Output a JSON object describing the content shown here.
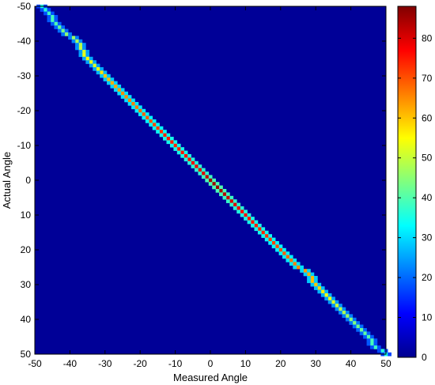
{
  "chart_data": {
    "type": "heatmap",
    "title": "",
    "xlabel": "Measured Angle",
    "ylabel": "Actual Angle",
    "xlim": [
      -50,
      50
    ],
    "ylim": [
      -50,
      50
    ],
    "y_direction": "top-to-bottom",
    "x_ticks": [
      -50,
      -40,
      -30,
      -20,
      -10,
      0,
      10,
      20,
      30,
      40,
      50
    ],
    "y_ticks": [
      -50,
      -40,
      -30,
      -20,
      -10,
      0,
      10,
      20,
      30,
      40,
      50
    ],
    "colorbar": {
      "colormap": "jet",
      "range": [
        0,
        88
      ],
      "ticks": [
        0,
        10,
        20,
        30,
        40,
        50,
        60,
        70,
        80
      ]
    },
    "bin_width": 1,
    "background_value": 2,
    "diagonal": [
      {
        "actual": -50,
        "measured": -48,
        "value": 35
      },
      {
        "actual": -48,
        "measured": -46,
        "value": 38
      },
      {
        "actual": -45,
        "measured": -44,
        "value": 40
      },
      {
        "actual": -42,
        "measured": -41,
        "value": 45
      },
      {
        "actual": -40,
        "measured": -38,
        "value": 48
      },
      {
        "actual": -38,
        "measured": -37,
        "value": 50
      },
      {
        "actual": -35,
        "measured": -35,
        "value": 55
      },
      {
        "actual": -33,
        "measured": -33,
        "value": 52
      },
      {
        "actual": -30,
        "measured": -30,
        "value": 60
      },
      {
        "actual": -28,
        "measured": -28,
        "value": 62
      },
      {
        "actual": -25,
        "measured": -25,
        "value": 65
      },
      {
        "actual": -22,
        "measured": -22,
        "value": 66
      },
      {
        "actual": -20,
        "measured": -20,
        "value": 68
      },
      {
        "actual": -17,
        "measured": -17,
        "value": 70
      },
      {
        "actual": -15,
        "measured": -15,
        "value": 72
      },
      {
        "actual": -12,
        "measured": -12,
        "value": 75
      },
      {
        "actual": -10,
        "measured": -10,
        "value": 74
      },
      {
        "actual": -7,
        "measured": -7,
        "value": 76
      },
      {
        "actual": -5,
        "measured": -5,
        "value": 78
      },
      {
        "actual": -2,
        "measured": -2,
        "value": 80
      },
      {
        "actual": 0,
        "measured": 0,
        "value": 85
      },
      {
        "actual": 2,
        "measured": 2,
        "value": 86
      },
      {
        "actual": 5,
        "measured": 5,
        "value": 82
      },
      {
        "actual": 7,
        "measured": 7,
        "value": 80
      },
      {
        "actual": 10,
        "measured": 10,
        "value": 76
      },
      {
        "actual": 12,
        "measured": 12,
        "value": 75
      },
      {
        "actual": 15,
        "measured": 15,
        "value": 74
      },
      {
        "actual": 17,
        "measured": 17,
        "value": 72
      },
      {
        "actual": 20,
        "measured": 20,
        "value": 70
      },
      {
        "actual": 22,
        "measured": 22,
        "value": 68
      },
      {
        "actual": 25,
        "measured": 25,
        "value": 65
      },
      {
        "actual": 27,
        "measured": 28,
        "value": 62
      },
      {
        "actual": 30,
        "measured": 30,
        "value": 60
      },
      {
        "actual": 33,
        "measured": 33,
        "value": 55
      },
      {
        "actual": 35,
        "measured": 35,
        "value": 52
      },
      {
        "actual": 38,
        "measured": 38,
        "value": 48
      },
      {
        "actual": 40,
        "measured": 40,
        "value": 45
      },
      {
        "actual": 43,
        "measured": 43,
        "value": 42
      },
      {
        "actual": 45,
        "measured": 45,
        "value": 40
      },
      {
        "actual": 48,
        "measured": 47,
        "value": 38
      },
      {
        "actual": 50,
        "measured": 50,
        "value": 35
      }
    ]
  }
}
